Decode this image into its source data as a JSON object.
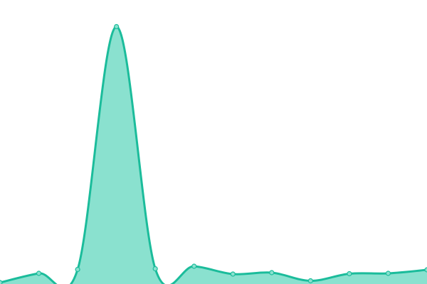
{
  "chart_data": {
    "type": "area",
    "title": "",
    "xlabel": "",
    "ylabel": "",
    "x": [
      0,
      1,
      2,
      3,
      4,
      5,
      6,
      7,
      8,
      9,
      10,
      11
    ],
    "values": [
      2,
      15,
      20.5,
      362.5,
      21.5,
      25,
      14,
      16,
      4.5,
      14.5,
      15,
      20
    ],
    "ylim": [
      0,
      400
    ],
    "grid": false,
    "axes_visible": false,
    "smooth": true,
    "markers": true,
    "colors": {
      "line": "#1bbc9b",
      "fill": "#8ae1cf",
      "marker_fill": "#8ae1cf",
      "marker_stroke": "#1bbc9b"
    }
  }
}
